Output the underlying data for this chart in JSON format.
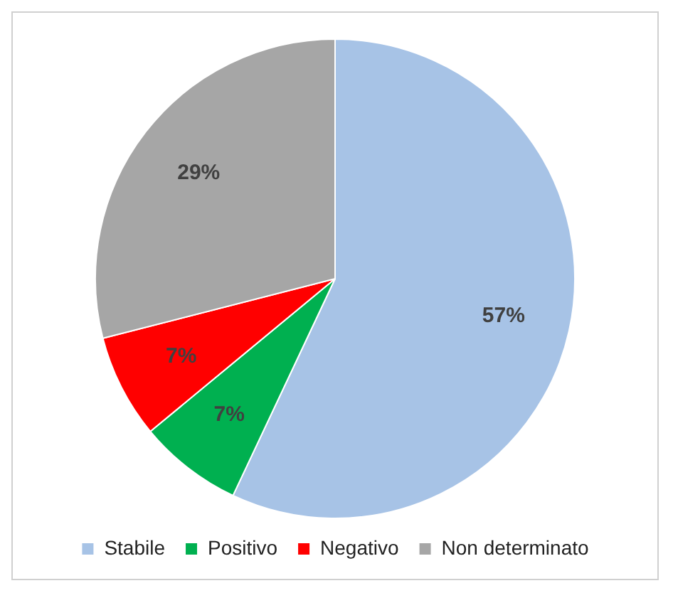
{
  "chart_data": {
    "type": "pie",
    "categories": [
      "Stabile",
      "Positivo",
      "Negativo",
      "Non determinato"
    ],
    "values": [
      57,
      7,
      7,
      29
    ],
    "colors": [
      "#a7c3e6",
      "#00b050",
      "#ff0000",
      "#a6a6a6"
    ],
    "value_labels": [
      "57%",
      "7%",
      "7%",
      "29%"
    ],
    "legend": "bottom"
  }
}
